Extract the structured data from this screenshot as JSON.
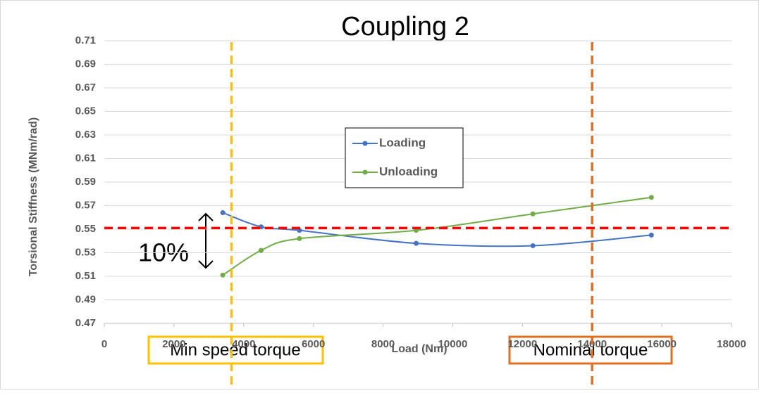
{
  "chart_data": {
    "type": "line",
    "title": "Coupling 2",
    "x_label": "Load (Nm)",
    "y_label": "Torsional Stiffness (MNm/rad)",
    "series": [
      {
        "name": "Loading",
        "color": "#4472c4",
        "x": [
          3400,
          4500,
          5600,
          8950,
          12300,
          15700
        ],
        "values": [
          0.564,
          0.552,
          0.549,
          0.538,
          0.536,
          0.545
        ]
      },
      {
        "name": "Unloading",
        "color": "#70ad47",
        "x": [
          3400,
          4500,
          5600,
          8950,
          12300,
          15700
        ],
        "values": [
          0.511,
          0.532,
          0.542,
          0.549,
          0.563,
          0.577
        ]
      }
    ],
    "xlim": [
      0,
      18000
    ],
    "xticks": [
      0,
      2000,
      4000,
      6000,
      8000,
      10000,
      12000,
      14000,
      16000,
      18000
    ],
    "ylim": [
      0.47,
      0.71
    ],
    "yticks": [
      0.47,
      0.49,
      0.51,
      0.53,
      0.55,
      0.57,
      0.59,
      0.61,
      0.63,
      0.65,
      0.67,
      0.69,
      0.71
    ],
    "grid": true,
    "smooth": true,
    "reference_lines": [
      {
        "axis": "y",
        "value": 0.551,
        "color": "#ff0000"
      },
      {
        "axis": "x",
        "value": 3650,
        "color": "#ffc000"
      },
      {
        "axis": "x",
        "value": 14000,
        "color": "#e07020"
      }
    ],
    "annotations": {
      "spread": "10%",
      "min_speed": "Min speed torque",
      "nominal": "Nominal torque"
    }
  }
}
